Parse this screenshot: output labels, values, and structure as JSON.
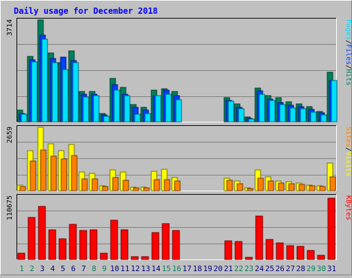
{
  "chart_data": [
    {
      "type": "bar",
      "title": "Daily usage for December 2018",
      "ytick_max_label": "3714",
      "ylim": [
        0,
        3714
      ],
      "categories": [
        "1",
        "2",
        "3",
        "4",
        "5",
        "6",
        "7",
        "8",
        "9",
        "10",
        "11",
        "12",
        "13",
        "14",
        "15",
        "16",
        "17",
        "18",
        "19",
        "20",
        "21",
        "22",
        "23",
        "24",
        "25",
        "26",
        "27",
        "28",
        "29",
        "30",
        "31"
      ],
      "weekend_days": [
        "1",
        "2",
        "8",
        "9",
        "15",
        "16",
        "22",
        "23",
        "29",
        "30"
      ],
      "legend_right": [
        "Pages",
        "/",
        "Files",
        "/",
        "Hits"
      ],
      "series": [
        {
          "name": "Hits",
          "values": [
            430,
            2380,
            3700,
            2500,
            2150,
            2560,
            1100,
            1100,
            300,
            1580,
            1250,
            620,
            520,
            1150,
            1200,
            1100,
            0,
            0,
            0,
            0,
            880,
            650,
            170,
            1220,
            940,
            860,
            720,
            660,
            550,
            380,
            1800
          ]
        },
        {
          "name": "Files",
          "values": [
            300,
            2250,
            3150,
            2300,
            2350,
            2210,
            1000,
            1000,
            250,
            1350,
            1000,
            520,
            430,
            950,
            1150,
            950,
            0,
            0,
            0,
            0,
            780,
            520,
            130,
            1120,
            820,
            700,
            600,
            560,
            450,
            320,
            1500
          ]
        },
        {
          "name": "Pages",
          "values": [
            280,
            2180,
            3000,
            2150,
            1900,
            2140,
            900,
            950,
            200,
            1150,
            950,
            280,
            290,
            950,
            1000,
            800,
            0,
            0,
            0,
            0,
            760,
            470,
            110,
            1000,
            780,
            620,
            500,
            470,
            350,
            260,
            1500
          ]
        }
      ]
    },
    {
      "type": "bar",
      "ytick_max_label": "2659",
      "ylim": [
        0,
        2659
      ],
      "categories": [
        "1",
        "2",
        "3",
        "4",
        "5",
        "6",
        "7",
        "8",
        "9",
        "10",
        "11",
        "12",
        "13",
        "14",
        "15",
        "16",
        "17",
        "18",
        "19",
        "20",
        "21",
        "22",
        "23",
        "24",
        "25",
        "26",
        "27",
        "28",
        "29",
        "30",
        "31"
      ],
      "legend_right": [
        "Sites",
        "/",
        "Visits"
      ],
      "series": [
        {
          "name": "Visits",
          "values": [
            220,
            1660,
            2620,
            1950,
            1670,
            1920,
            760,
            720,
            200,
            850,
            760,
            150,
            140,
            800,
            900,
            540,
            0,
            0,
            0,
            0,
            520,
            400,
            110,
            860,
            560,
            400,
            360,
            310,
            230,
            210,
            1150
          ]
        },
        {
          "name": "Sites",
          "values": [
            180,
            1240,
            1700,
            1440,
            1310,
            1450,
            480,
            490,
            160,
            540,
            420,
            110,
            110,
            450,
            450,
            390,
            0,
            0,
            0,
            0,
            420,
            300,
            80,
            520,
            390,
            320,
            300,
            260,
            190,
            170,
            560
          ]
        }
      ]
    },
    {
      "type": "bar",
      "ytick_max_label": "110675",
      "ylim": [
        0,
        110675
      ],
      "categories": [
        "1",
        "2",
        "3",
        "4",
        "5",
        "6",
        "7",
        "8",
        "9",
        "10",
        "11",
        "12",
        "13",
        "14",
        "15",
        "16",
        "17",
        "18",
        "19",
        "20",
        "21",
        "22",
        "23",
        "24",
        "25",
        "26",
        "27",
        "28",
        "29",
        "30",
        "31"
      ],
      "legend_right": [
        "KBytes"
      ],
      "series": [
        {
          "name": "KBytes",
          "values": [
            10500,
            73000,
            92000,
            51000,
            36000,
            61000,
            50000,
            51000,
            10500,
            68000,
            51000,
            4500,
            4200,
            46000,
            62000,
            50000,
            0,
            0,
            0,
            0,
            32000,
            31000,
            3500,
            75000,
            34000,
            29000,
            24000,
            22500,
            15000,
            7500,
            106000
          ]
        }
      ]
    }
  ],
  "colors": {
    "hits": "#00805c",
    "files": "#0040ff",
    "pages": "#00e0ff",
    "visits": "#ffff00",
    "sites": "#ff8000",
    "kbytes": "#ff0000",
    "title": "#0000ff",
    "weekend_label": "#00805c",
    "weekday_label": "#000080"
  }
}
